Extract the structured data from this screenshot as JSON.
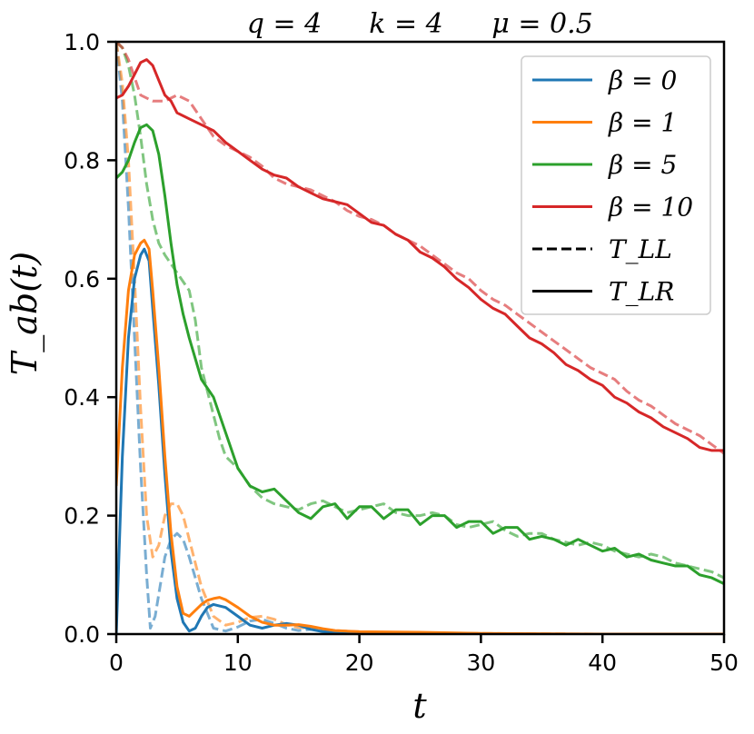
{
  "chart_data": {
    "type": "line",
    "title_parts": [
      "q = 4",
      "k = 4",
      "μ = 0.5"
    ],
    "xlabel": "t",
    "ylabel": "T_ab(t)",
    "xlim": [
      0,
      50
    ],
    "ylim": [
      0,
      1.0
    ],
    "x_ticks": [
      "0",
      "10",
      "20",
      "30",
      "40",
      "50"
    ],
    "y_ticks": [
      "0.0",
      "0.2",
      "0.4",
      "0.6",
      "0.8",
      "1.0"
    ],
    "grid": false,
    "legend_position": "top-right",
    "legend": [
      {
        "label": "β = 0",
        "color": "#1f77b4",
        "style": "solid"
      },
      {
        "label": "β = 1",
        "color": "#ff7f0e",
        "style": "solid"
      },
      {
        "label": "β = 5",
        "color": "#2ca02c",
        "style": "solid"
      },
      {
        "label": "β = 10",
        "color": "#d62728",
        "style": "solid"
      },
      {
        "label": "T_LL",
        "color": "#000000",
        "style": "dashed"
      },
      {
        "label": "T_LR",
        "color": "#000000",
        "style": "solid"
      }
    ],
    "series": [
      {
        "name": "β = 0",
        "kind": "T_LR",
        "color": "#1f77b4",
        "style": "solid",
        "x": [
          0,
          0.5,
          1,
          1.5,
          2,
          2.3,
          2.7,
          3,
          3.5,
          4,
          4.5,
          5,
          5.5,
          6,
          6.5,
          7,
          7.5,
          8,
          9,
          10,
          11,
          12,
          13,
          14,
          15,
          16,
          17,
          18,
          20,
          25,
          30,
          40,
          50
        ],
        "y": [
          0,
          0.3,
          0.5,
          0.6,
          0.64,
          0.65,
          0.63,
          0.55,
          0.42,
          0.27,
          0.14,
          0.06,
          0.02,
          0.005,
          0.01,
          0.03,
          0.045,
          0.05,
          0.045,
          0.03,
          0.015,
          0.01,
          0.015,
          0.018,
          0.015,
          0.008,
          0.004,
          0.003,
          0.002,
          0.001,
          0,
          0,
          0
        ]
      },
      {
        "name": "β = 0",
        "kind": "T_LL",
        "color": "#1f77b4",
        "style": "dashed",
        "x": [
          0,
          0.5,
          1,
          1.5,
          2,
          2.5,
          2.8,
          3.2,
          4,
          4.5,
          5,
          5.5,
          6,
          7,
          8,
          9,
          10,
          11,
          12,
          13,
          14,
          15,
          16,
          18,
          20,
          25,
          30,
          40,
          50
        ],
        "y": [
          1.0,
          0.9,
          0.72,
          0.5,
          0.28,
          0.1,
          0.01,
          0.03,
          0.13,
          0.16,
          0.17,
          0.16,
          0.13,
          0.06,
          0.01,
          0.005,
          0.012,
          0.022,
          0.025,
          0.018,
          0.01,
          0.006,
          0.008,
          0.004,
          0.002,
          0,
          0,
          0,
          0
        ]
      },
      {
        "name": "β = 1",
        "kind": "T_LR",
        "color": "#ff7f0e",
        "style": "solid",
        "x": [
          0,
          0.5,
          1,
          1.5,
          2,
          2.3,
          2.7,
          3,
          3.5,
          4,
          4.5,
          5,
          5.5,
          6,
          6.5,
          7,
          7.5,
          8,
          8.5,
          9,
          10,
          11,
          12,
          13,
          14,
          15,
          16,
          17,
          18,
          20,
          25,
          30,
          40,
          50
        ],
        "y": [
          0.25,
          0.45,
          0.58,
          0.64,
          0.66,
          0.665,
          0.65,
          0.58,
          0.45,
          0.3,
          0.17,
          0.08,
          0.035,
          0.03,
          0.04,
          0.05,
          0.057,
          0.06,
          0.062,
          0.058,
          0.045,
          0.03,
          0.02,
          0.015,
          0.015,
          0.016,
          0.013,
          0.009,
          0.006,
          0.004,
          0.003,
          0.001,
          0.0,
          0.0
        ]
      },
      {
        "name": "β = 1",
        "kind": "T_LL",
        "color": "#ff7f0e",
        "style": "dashed",
        "x": [
          0,
          0.5,
          1,
          1.5,
          2,
          2.5,
          3,
          3.5,
          4,
          4.5,
          5,
          5.5,
          6,
          7,
          8,
          9,
          10,
          11,
          12,
          13,
          14,
          15,
          16,
          18,
          20,
          25,
          30,
          40,
          50
        ],
        "y": [
          1.0,
          0.93,
          0.8,
          0.6,
          0.38,
          0.2,
          0.13,
          0.15,
          0.2,
          0.22,
          0.22,
          0.2,
          0.16,
          0.08,
          0.03,
          0.015,
          0.02,
          0.028,
          0.03,
          0.025,
          0.016,
          0.011,
          0.01,
          0.006,
          0.004,
          0.002,
          0.001,
          0,
          0
        ]
      },
      {
        "name": "β = 5",
        "kind": "T_LR",
        "color": "#2ca02c",
        "style": "solid",
        "x": [
          0,
          0.5,
          1,
          1.5,
          2,
          2.5,
          3,
          3.5,
          4,
          4.5,
          5,
          5.5,
          6,
          7,
          8,
          9,
          10,
          10.5,
          11,
          12,
          13,
          14,
          15,
          16,
          17,
          18,
          19,
          20,
          21,
          22,
          23,
          24,
          25,
          26,
          27,
          28,
          29,
          30,
          31,
          32,
          33,
          34,
          35,
          36,
          37,
          38,
          39,
          40,
          41,
          42,
          43,
          44,
          45,
          46,
          47,
          48,
          49,
          50
        ],
        "y": [
          0.77,
          0.78,
          0.8,
          0.83,
          0.855,
          0.86,
          0.85,
          0.81,
          0.74,
          0.66,
          0.59,
          0.54,
          0.5,
          0.43,
          0.4,
          0.34,
          0.28,
          0.265,
          0.25,
          0.24,
          0.245,
          0.225,
          0.205,
          0.195,
          0.215,
          0.22,
          0.195,
          0.215,
          0.215,
          0.195,
          0.21,
          0.21,
          0.185,
          0.2,
          0.2,
          0.18,
          0.19,
          0.19,
          0.17,
          0.18,
          0.18,
          0.16,
          0.165,
          0.16,
          0.15,
          0.16,
          0.15,
          0.14,
          0.145,
          0.13,
          0.135,
          0.125,
          0.12,
          0.115,
          0.115,
          0.1,
          0.095,
          0.085
        ]
      },
      {
        "name": "β = 5",
        "kind": "T_LL",
        "color": "#2ca02c",
        "style": "dashed",
        "x": [
          0,
          0.5,
          1,
          1.5,
          2,
          2.5,
          3,
          3.5,
          4,
          5,
          6,
          6.5,
          7,
          8,
          8.5,
          9,
          10,
          11,
          12,
          13,
          14,
          15,
          16,
          17,
          18,
          19,
          20,
          21,
          22,
          23,
          24,
          25,
          26,
          27,
          28,
          29,
          30,
          31,
          32,
          33,
          34,
          35,
          36,
          37,
          38,
          39,
          40,
          41,
          42,
          43,
          44,
          45,
          46,
          47,
          48,
          49,
          50
        ],
        "y": [
          1.0,
          0.99,
          0.96,
          0.91,
          0.84,
          0.76,
          0.7,
          0.66,
          0.64,
          0.61,
          0.58,
          0.53,
          0.45,
          0.37,
          0.33,
          0.3,
          0.28,
          0.25,
          0.23,
          0.22,
          0.215,
          0.21,
          0.22,
          0.225,
          0.215,
          0.205,
          0.21,
          0.215,
          0.22,
          0.205,
          0.2,
          0.2,
          0.205,
          0.2,
          0.185,
          0.18,
          0.185,
          0.19,
          0.175,
          0.165,
          0.17,
          0.17,
          0.16,
          0.155,
          0.15,
          0.155,
          0.15,
          0.14,
          0.135,
          0.13,
          0.135,
          0.13,
          0.12,
          0.115,
          0.11,
          0.105,
          0.095
        ]
      },
      {
        "name": "β = 10",
        "kind": "T_LR",
        "color": "#d62728",
        "style": "solid",
        "x": [
          0,
          0.5,
          1,
          1.5,
          2,
          2.5,
          3,
          3.5,
          4,
          4.5,
          5,
          6,
          7,
          8,
          9,
          10,
          11,
          12,
          13,
          14,
          15,
          16,
          17,
          18,
          19,
          20,
          21,
          22,
          23,
          24,
          25,
          26,
          27,
          28,
          29,
          30,
          31,
          32,
          33,
          34,
          35,
          36,
          37,
          38,
          39,
          40,
          41,
          42,
          43,
          44,
          45,
          46,
          47,
          48,
          49,
          50
        ],
        "y": [
          0.905,
          0.91,
          0.925,
          0.945,
          0.965,
          0.97,
          0.96,
          0.935,
          0.91,
          0.9,
          0.88,
          0.87,
          0.86,
          0.85,
          0.83,
          0.815,
          0.8,
          0.785,
          0.775,
          0.77,
          0.755,
          0.745,
          0.735,
          0.73,
          0.725,
          0.71,
          0.695,
          0.69,
          0.675,
          0.665,
          0.645,
          0.635,
          0.62,
          0.6,
          0.585,
          0.565,
          0.55,
          0.54,
          0.52,
          0.5,
          0.49,
          0.475,
          0.455,
          0.445,
          0.43,
          0.42,
          0.4,
          0.39,
          0.375,
          0.365,
          0.35,
          0.34,
          0.33,
          0.315,
          0.31,
          0.31
        ]
      },
      {
        "name": "β = 10",
        "kind": "T_LL",
        "color": "#d62728",
        "style": "dashed",
        "x": [
          0,
          0.5,
          1,
          1.5,
          2,
          3,
          4,
          5,
          6,
          7,
          8,
          9,
          10,
          11,
          12,
          13,
          14,
          15,
          16,
          17,
          18,
          19,
          20,
          21,
          22,
          23,
          24,
          25,
          26,
          27,
          28,
          29,
          30,
          31,
          32,
          33,
          34,
          35,
          36,
          37,
          38,
          39,
          40,
          41,
          42,
          43,
          44,
          45,
          46,
          47,
          48,
          49,
          50
        ],
        "y": [
          1.0,
          0.99,
          0.97,
          0.94,
          0.91,
          0.9,
          0.9,
          0.91,
          0.9,
          0.87,
          0.84,
          0.825,
          0.815,
          0.805,
          0.79,
          0.77,
          0.76,
          0.755,
          0.75,
          0.74,
          0.73,
          0.715,
          0.705,
          0.7,
          0.69,
          0.675,
          0.665,
          0.655,
          0.64,
          0.625,
          0.61,
          0.6,
          0.58,
          0.565,
          0.555,
          0.54,
          0.525,
          0.51,
          0.495,
          0.48,
          0.465,
          0.45,
          0.44,
          0.43,
          0.41,
          0.395,
          0.385,
          0.37,
          0.355,
          0.345,
          0.335,
          0.32,
          0.305
        ]
      }
    ]
  }
}
